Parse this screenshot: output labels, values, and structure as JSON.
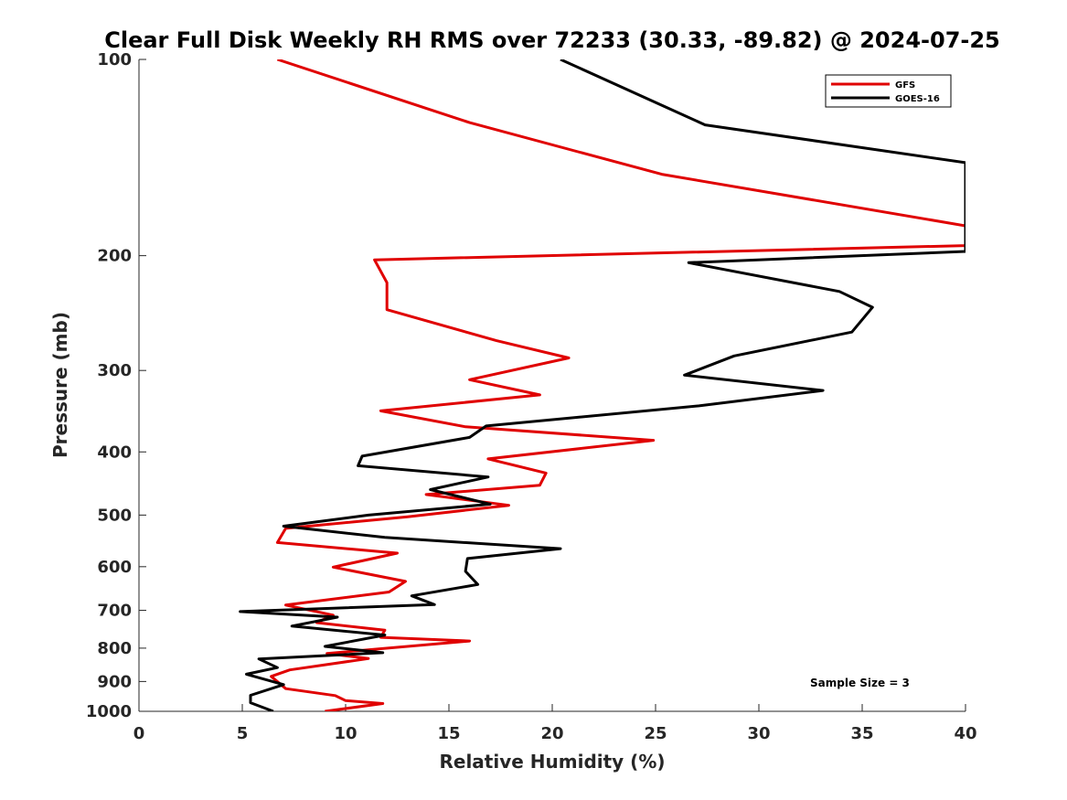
{
  "chart_data": {
    "type": "line",
    "title": "Clear Full Disk Weekly RH RMS over 72233 (30.33, -89.82) @ 2024-07-25",
    "xlabel": "Relative Humidity (%)",
    "ylabel": "Pressure (mb)",
    "xlim": [
      0,
      40
    ],
    "ylim": [
      100,
      1000
    ],
    "yscale": "log",
    "y_reversed": true,
    "xticks": [
      0,
      5,
      10,
      15,
      20,
      25,
      30,
      35,
      40
    ],
    "xtick_labels": [
      "0",
      "5",
      "10",
      "15",
      "20",
      "25",
      "30",
      "35",
      "40"
    ],
    "yticks": [
      100,
      200,
      300,
      400,
      500,
      600,
      700,
      800,
      900,
      1000
    ],
    "ytick_labels": [
      "100",
      "200",
      "300",
      "400",
      "500",
      "600",
      "700",
      "800",
      "900",
      "1000"
    ],
    "grid": false,
    "legend_position": "top-right",
    "annotation": "Sample Size = 3",
    "series": [
      {
        "name": "GFS",
        "color": "#e00000",
        "points": [
          [
            6.7,
            100
          ],
          [
            16.0,
            125
          ],
          [
            25.3,
            150
          ],
          [
            40.0,
            180
          ],
          [
            40.0,
            193
          ],
          [
            11.4,
            203
          ],
          [
            12.0,
            220
          ],
          [
            12.0,
            242
          ],
          [
            17.3,
            270
          ],
          [
            20.8,
            287
          ],
          [
            16.0,
            310
          ],
          [
            19.4,
            327
          ],
          [
            11.7,
            346
          ],
          [
            15.8,
            366
          ],
          [
            24.9,
            384
          ],
          [
            16.9,
            410
          ],
          [
            19.7,
            431
          ],
          [
            19.4,
            450
          ],
          [
            13.9,
            465
          ],
          [
            17.9,
            483
          ],
          [
            13.0,
            503
          ],
          [
            7.1,
            524
          ],
          [
            6.7,
            551
          ],
          [
            12.5,
            572
          ],
          [
            9.4,
            601
          ],
          [
            12.9,
            632
          ],
          [
            12.1,
            656
          ],
          [
            7.1,
            687
          ],
          [
            9.4,
            712
          ],
          [
            8.6,
            731
          ],
          [
            11.9,
            751
          ],
          [
            11.7,
            770
          ],
          [
            16.0,
            780
          ],
          [
            9.1,
            815
          ],
          [
            11.1,
            830
          ],
          [
            7.3,
            864
          ],
          [
            6.4,
            884
          ],
          [
            7.1,
            923
          ],
          [
            9.5,
            946
          ],
          [
            10.0,
            963
          ],
          [
            11.8,
            973
          ],
          [
            9.0,
            1000
          ]
        ]
      },
      {
        "name": "GOES-16",
        "color": "#000000",
        "points": [
          [
            20.4,
            100
          ],
          [
            27.4,
            126
          ],
          [
            40.0,
            144
          ],
          [
            40.0,
            197
          ],
          [
            26.6,
            205
          ],
          [
            33.9,
            227
          ],
          [
            35.5,
            240
          ],
          [
            34.5,
            262
          ],
          [
            28.8,
            285
          ],
          [
            26.4,
            305
          ],
          [
            33.1,
            322
          ],
          [
            27.1,
            340
          ],
          [
            16.8,
            365
          ],
          [
            16.0,
            380
          ],
          [
            10.8,
            406
          ],
          [
            10.6,
            420
          ],
          [
            16.9,
            437
          ],
          [
            14.1,
            457
          ],
          [
            17.0,
            481
          ],
          [
            11.1,
            500
          ],
          [
            7.0,
            520
          ],
          [
            11.9,
            541
          ],
          [
            20.4,
            563
          ],
          [
            15.9,
            583
          ],
          [
            15.8,
            610
          ],
          [
            16.4,
            639
          ],
          [
            13.2,
            665
          ],
          [
            14.3,
            686
          ],
          [
            4.9,
            703
          ],
          [
            9.6,
            717
          ],
          [
            7.4,
            740
          ],
          [
            11.9,
            764
          ],
          [
            9.0,
            795
          ],
          [
            11.8,
            813
          ],
          [
            5.8,
            831
          ],
          [
            6.7,
            857
          ],
          [
            5.2,
            877
          ],
          [
            7.0,
            910
          ],
          [
            5.4,
            945
          ],
          [
            5.4,
            970
          ],
          [
            6.5,
            1000
          ]
        ]
      }
    ]
  }
}
